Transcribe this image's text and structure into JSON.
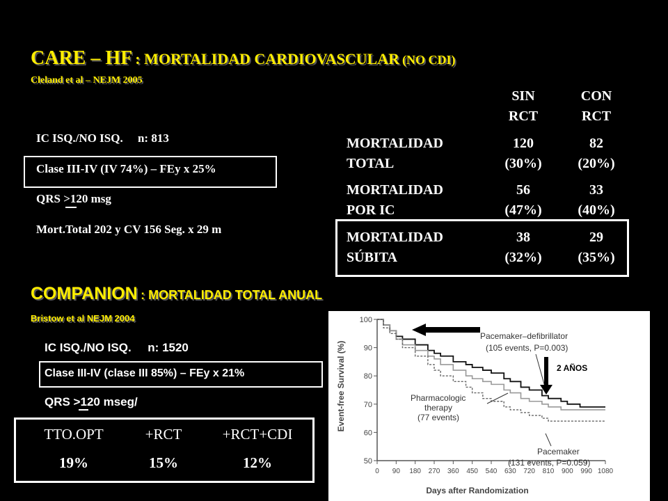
{
  "care": {
    "title_main": "CARE – HF",
    "title_sub": ": MORTALIDAD CARDIOVASCULAR",
    "title_paren": "(NO CDI)",
    "citation": "Cleland et al – NEJM 2005",
    "facts": [
      "IC ISQ./NO ISQ.     n: 813",
      "Clase III-IV (IV 74%) – FEy x 25%",
      "QRS >120 msg",
      "Mort.Total 202 y CV 156  Seg. x 29 m"
    ],
    "table": {
      "col1": [
        "SIN",
        "RCT"
      ],
      "col2": [
        "CON",
        "RCT"
      ],
      "rows": [
        {
          "label": [
            "MORTALIDAD",
            "TOTAL"
          ],
          "sin": [
            "120",
            "(30%)"
          ],
          "con": [
            "82",
            "(20%)"
          ]
        },
        {
          "label": [
            "MORTALIDAD",
            "POR IC"
          ],
          "sin": [
            "56",
            "(47%)"
          ],
          "con": [
            "33",
            "(40%)"
          ]
        },
        {
          "label": [
            "MORTALIDAD",
            "SÚBITA"
          ],
          "sin": [
            "38",
            "(32%)"
          ],
          "con": [
            "29",
            "(35%)"
          ]
        }
      ]
    }
  },
  "companion": {
    "title_main": "COMPANION",
    "title_sub": ": MORTALIDAD TOTAL ANUAL",
    "citation": "Bristow et al NEJM 2004",
    "facts": [
      "IC ISQ./NO ISQ.     n: 1520",
      "Clase III-IV (clase III 85%) – FEy x 21%",
      "QRS >120 mseg/"
    ],
    "summary": {
      "headers": [
        "TTO.OPT",
        "+RCT",
        "+RCT+CDI"
      ],
      "values": [
        "19%",
        "15%",
        "12%"
      ]
    }
  },
  "chart_data": {
    "type": "line",
    "title": "",
    "xlabel": "Days after Randomization",
    "ylabel": "Event-free Survival (%)",
    "xlim": [
      0,
      1080
    ],
    "ylim": [
      50,
      100
    ],
    "xticks": [
      0,
      90,
      180,
      270,
      360,
      450,
      540,
      630,
      720,
      810,
      900,
      990,
      1080
    ],
    "yticks": [
      50,
      60,
      70,
      80,
      90,
      100
    ],
    "series": [
      {
        "name": "Pacemaker–defibrillator",
        "annotation": "(105 events, P=0.003)",
        "style": "solid-dark",
        "x": [
          0,
          30,
          60,
          90,
          120,
          180,
          240,
          270,
          300,
          360,
          420,
          450,
          500,
          540,
          600,
          630,
          680,
          720,
          780,
          810,
          870,
          900,
          960,
          990,
          1020,
          1080
        ],
        "y": [
          100,
          98,
          96,
          94,
          93,
          91,
          89,
          88,
          87,
          85,
          84,
          83,
          82,
          81,
          79,
          78,
          76,
          75,
          73,
          72,
          71,
          70,
          69,
          69,
          69,
          69
        ]
      },
      {
        "name": "Pacemaker",
        "annotation": "(131 events, P=0.059)",
        "style": "solid-gray",
        "x": [
          0,
          30,
          60,
          90,
          120,
          180,
          240,
          270,
          300,
          360,
          420,
          450,
          500,
          540,
          600,
          630,
          680,
          720,
          780,
          810,
          870,
          900,
          960,
          990,
          1080
        ],
        "y": [
          100,
          98,
          96,
          93,
          91,
          89,
          87,
          86,
          84,
          82,
          80,
          79,
          78,
          77,
          75,
          74,
          72,
          71,
          70,
          69,
          68,
          68,
          68,
          68,
          68
        ]
      },
      {
        "name": "Pharmacologic therapy",
        "annotation": "(77 events)",
        "style": "dashed",
        "x": [
          0,
          30,
          60,
          90,
          120,
          180,
          240,
          270,
          300,
          360,
          420,
          450,
          500,
          540,
          600,
          630,
          680,
          720,
          780,
          810,
          870,
          900,
          960,
          990,
          1080
        ],
        "y": [
          100,
          97,
          95,
          93,
          90,
          87,
          84,
          82,
          80,
          78,
          76,
          74,
          72,
          71,
          69,
          68,
          67,
          66,
          65,
          64,
          64,
          64,
          64,
          64,
          64
        ]
      }
    ],
    "annotations": [
      "2 AÑOS"
    ]
  }
}
